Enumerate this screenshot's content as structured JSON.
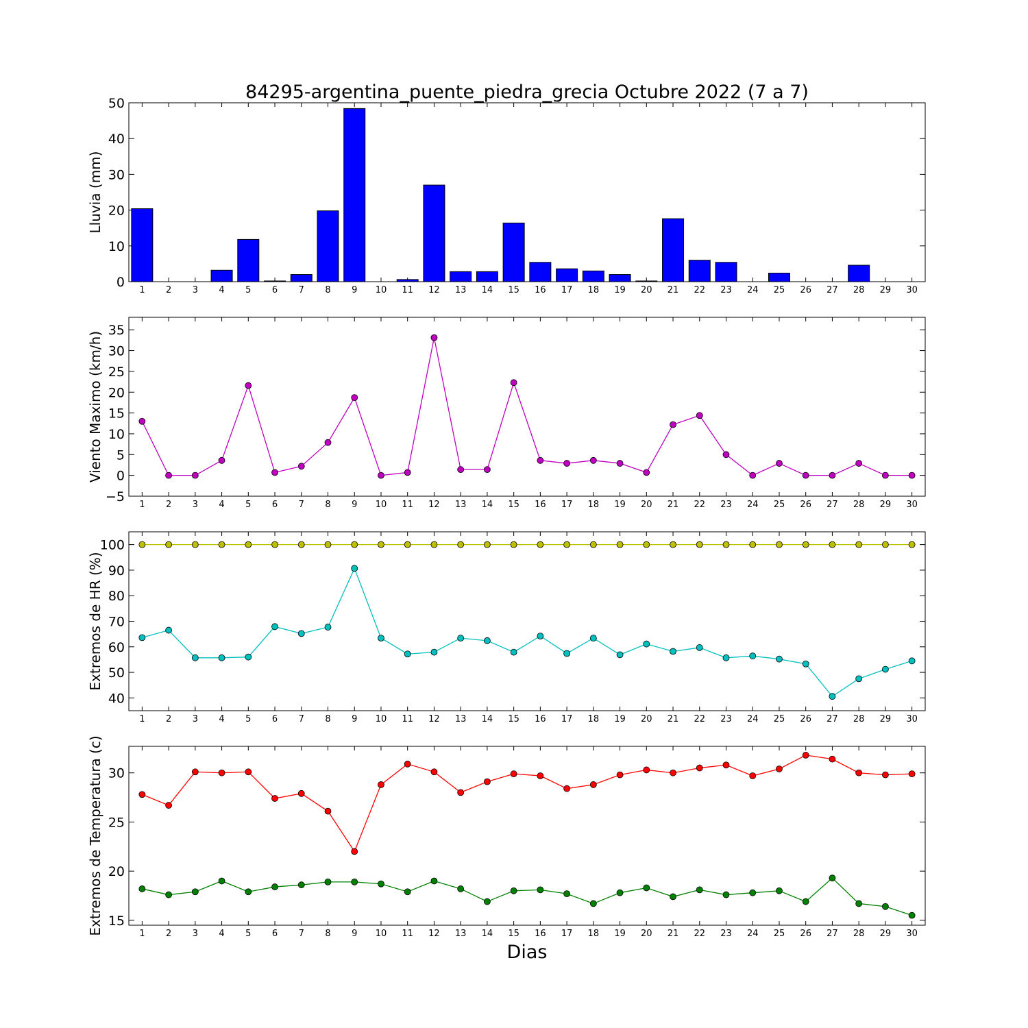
{
  "title": "84295-argentina_puente_piedra_grecia Octubre 2022  (7 a 7)",
  "xlabel": "Dias",
  "colors": {
    "rain": "#0000ff",
    "wind": "#bf00bf",
    "hr_max": "#bfbf00",
    "hr_min": "#00bfbf",
    "temp_max": "#ff0000",
    "temp_min": "#008000"
  },
  "chart_data": [
    {
      "type": "bar",
      "ylabel": "Lluvia (mm)",
      "ylim": [
        0,
        50
      ],
      "yticks": [
        0,
        10,
        20,
        30,
        40,
        50
      ],
      "categories": [
        "1",
        "2",
        "3",
        "4",
        "5",
        "6",
        "7",
        "8",
        "9",
        "10",
        "11",
        "12",
        "13",
        "14",
        "15",
        "16",
        "17",
        "18",
        "19",
        "20",
        "21",
        "22",
        "23",
        "24",
        "25",
        "26",
        "27",
        "28",
        "29",
        "30"
      ],
      "series": [
        {
          "color_key": "rain",
          "values": [
            20.4,
            0,
            0,
            3.2,
            11.8,
            0.2,
            2.0,
            19.8,
            48.4,
            0,
            0.6,
            27.0,
            2.8,
            2.8,
            16.4,
            5.4,
            3.6,
            3.0,
            2.0,
            0.2,
            17.6,
            6.0,
            5.4,
            0,
            2.4,
            0,
            0,
            4.6,
            0,
            0
          ]
        }
      ]
    },
    {
      "type": "line",
      "ylabel": "Viento Maximo (km/h)",
      "ylim": [
        -5,
        38
      ],
      "yticks": [
        -5,
        0,
        5,
        10,
        15,
        20,
        25,
        30,
        35
      ],
      "categories": [
        "1",
        "2",
        "3",
        "4",
        "5",
        "6",
        "7",
        "8",
        "9",
        "10",
        "11",
        "12",
        "13",
        "14",
        "15",
        "16",
        "17",
        "18",
        "19",
        "20",
        "21",
        "22",
        "23",
        "24",
        "25",
        "26",
        "27",
        "28",
        "29",
        "30"
      ],
      "series": [
        {
          "color_key": "wind",
          "values": [
            13.0,
            0,
            0,
            3.6,
            21.6,
            0.7,
            2.2,
            7.9,
            18.7,
            0,
            0.7,
            33.1,
            1.4,
            1.4,
            22.3,
            3.6,
            2.9,
            3.6,
            2.9,
            0.7,
            12.2,
            14.4,
            5.0,
            0,
            2.9,
            0,
            0,
            2.9,
            0,
            0
          ]
        }
      ]
    },
    {
      "type": "line",
      "ylabel": "Extremos de HR (%)",
      "ylim": [
        35,
        105
      ],
      "yticks": [
        40,
        50,
        60,
        70,
        80,
        90,
        100
      ],
      "categories": [
        "1",
        "2",
        "3",
        "4",
        "5",
        "6",
        "7",
        "8",
        "9",
        "10",
        "11",
        "12",
        "13",
        "14",
        "15",
        "16",
        "17",
        "18",
        "19",
        "20",
        "21",
        "22",
        "23",
        "24",
        "25",
        "26",
        "27",
        "28",
        "29",
        "30"
      ],
      "series": [
        {
          "color_key": "hr_max",
          "values": [
            100,
            100,
            100,
            100,
            100,
            100,
            100,
            100,
            100,
            100,
            100,
            100,
            100,
            100,
            100,
            100,
            100,
            100,
            100,
            100,
            100,
            100,
            100,
            100,
            100,
            100,
            100,
            100,
            100,
            100
          ]
        },
        {
          "color_key": "hr_min",
          "values": [
            63.6,
            66.5,
            55.7,
            55.7,
            56.0,
            67.9,
            65.2,
            67.7,
            90.7,
            63.4,
            57.2,
            57.9,
            63.4,
            62.4,
            57.9,
            64.2,
            57.4,
            63.4,
            56.9,
            61.1,
            58.2,
            59.7,
            55.7,
            56.4,
            55.2,
            53.3,
            40.6,
            47.5,
            51.2,
            54.5
          ]
        }
      ]
    },
    {
      "type": "line",
      "ylabel": "Extremos de Temperatura (c)",
      "ylim": [
        14.5,
        32.7
      ],
      "yticks": [
        15,
        20,
        25,
        30
      ],
      "categories": [
        "1",
        "2",
        "3",
        "4",
        "5",
        "6",
        "7",
        "8",
        "9",
        "10",
        "11",
        "12",
        "13",
        "14",
        "15",
        "16",
        "17",
        "18",
        "19",
        "20",
        "21",
        "22",
        "23",
        "24",
        "25",
        "26",
        "27",
        "28",
        "29",
        "30"
      ],
      "series": [
        {
          "color_key": "temp_max",
          "values": [
            27.8,
            26.7,
            30.1,
            30.0,
            30.1,
            27.4,
            27.9,
            26.1,
            22.0,
            28.8,
            30.9,
            30.1,
            28.0,
            29.1,
            29.9,
            29.7,
            28.4,
            28.8,
            29.8,
            30.3,
            30.0,
            30.5,
            30.8,
            29.7,
            30.4,
            31.8,
            31.4,
            30.0,
            29.8,
            29.9
          ]
        },
        {
          "color_key": "temp_min",
          "values": [
            18.2,
            17.6,
            17.9,
            19.0,
            17.9,
            18.4,
            18.6,
            18.9,
            18.9,
            18.7,
            17.9,
            19.0,
            18.2,
            16.9,
            18.0,
            18.1,
            17.7,
            16.7,
            17.8,
            18.3,
            17.4,
            18.1,
            17.6,
            17.8,
            18.0,
            16.9,
            19.3,
            16.7,
            16.4,
            15.5
          ]
        }
      ]
    }
  ]
}
